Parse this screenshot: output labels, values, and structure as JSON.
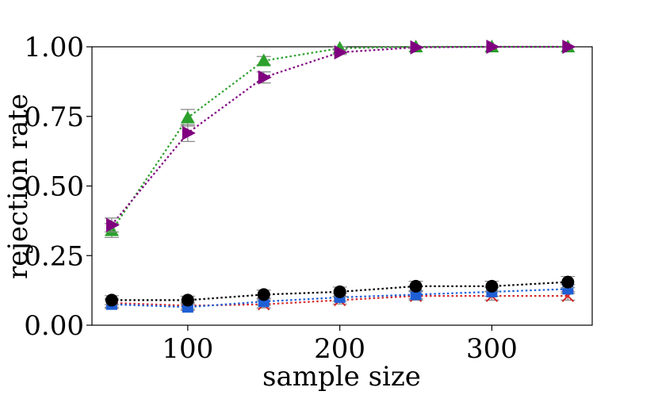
{
  "chart_data": {
    "type": "line",
    "title": "",
    "xlabel": "sample size",
    "ylabel": "rejection rate",
    "x": [
      50,
      100,
      150,
      200,
      250,
      300,
      350
    ],
    "xlim": [
      37,
      366
    ],
    "ylim": [
      0,
      1
    ],
    "xticks": [
      100,
      200,
      300
    ],
    "xtick_labels": [
      "100",
      "200",
      "300"
    ],
    "yticks": [
      0,
      0.25,
      0.5,
      0.75,
      1.0
    ],
    "ytick_labels": [
      "0.00",
      "0.25",
      "0.50",
      "0.75",
      "1.00"
    ],
    "grid": false,
    "series": [
      {
        "name": "red-x",
        "color": "#d62728",
        "marker": "x",
        "values": [
          0.08,
          0.07,
          0.075,
          0.09,
          0.105,
          0.105,
          0.105
        ],
        "errors": [
          0.015,
          0.012,
          0.013,
          0.014,
          0.015,
          0.015,
          0.015
        ]
      },
      {
        "name": "blue-square",
        "color": "#1f5fd6",
        "marker": "square",
        "values": [
          0.075,
          0.065,
          0.085,
          0.1,
          0.11,
          0.12,
          0.13
        ],
        "errors": [
          0.015,
          0.012,
          0.013,
          0.014,
          0.015,
          0.016,
          0.016
        ]
      },
      {
        "name": "black-circle",
        "color": "#000000",
        "marker": "circle",
        "values": [
          0.09,
          0.09,
          0.11,
          0.12,
          0.14,
          0.14,
          0.155
        ],
        "errors": [
          0.016,
          0.014,
          0.016,
          0.017,
          0.018,
          0.018,
          0.02
        ]
      },
      {
        "name": "green-triangle-up",
        "color": "#2ca02c",
        "marker": "triangle-up",
        "values": [
          0.34,
          0.745,
          0.95,
          0.995,
          1.0,
          1.0,
          1.0
        ],
        "errors": [
          0.025,
          0.03,
          0.015,
          0.005,
          0.002,
          0.002,
          0.002
        ]
      },
      {
        "name": "purple-triangle-right",
        "color": "#800080",
        "marker": "triangle-right",
        "values": [
          0.36,
          0.69,
          0.89,
          0.98,
          0.998,
          1.0,
          1.0
        ],
        "errors": [
          0.025,
          0.03,
          0.02,
          0.008,
          0.003,
          0.002,
          0.002
        ]
      }
    ]
  }
}
